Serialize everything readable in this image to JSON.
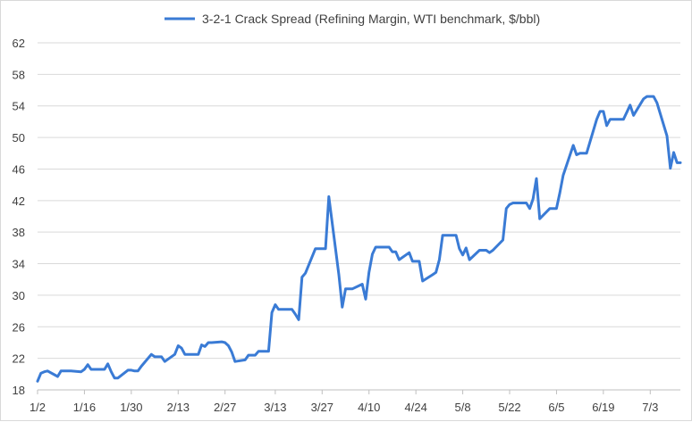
{
  "chart_data": {
    "type": "line",
    "title": "",
    "xlabel": "",
    "ylabel": "",
    "ylim": [
      18,
      62
    ],
    "yticks": [
      18,
      22,
      26,
      30,
      34,
      38,
      42,
      46,
      50,
      54,
      58,
      62
    ],
    "xlim": [
      "2024-01-02",
      "2024-07-12"
    ],
    "xticks": [
      "2024-01-02",
      "2024-01-16",
      "2024-01-30",
      "2024-02-13",
      "2024-02-27",
      "2024-03-13",
      "2024-03-27",
      "2024-04-10",
      "2024-04-24",
      "2024-05-08",
      "2024-05-22",
      "2024-06-05",
      "2024-06-19",
      "2024-07-03"
    ],
    "xtick_labels": [
      "1/2",
      "1/16",
      "1/30",
      "2/13",
      "2/27",
      "3/13",
      "3/27",
      "4/10",
      "4/24",
      "5/8",
      "5/22",
      "6/5",
      "6/19",
      "7/3"
    ],
    "grid": "horizontal",
    "legend": "top-center",
    "series": [
      {
        "name": "3-2-1 Crack Spread (Refining Margin, WTI benchmark, $/bbl)",
        "color": "#3a7bd5",
        "points": [
          [
            "2024-01-02",
            19.1
          ],
          [
            "2024-01-03",
            20.1
          ],
          [
            "2024-01-04",
            20.3
          ],
          [
            "2024-01-05",
            20.4
          ],
          [
            "2024-01-08",
            19.7
          ],
          [
            "2024-01-09",
            20.4
          ],
          [
            "2024-01-10",
            20.4
          ],
          [
            "2024-01-11",
            20.4
          ],
          [
            "2024-01-12",
            20.4
          ],
          [
            "2024-01-15",
            20.3
          ],
          [
            "2024-01-16",
            20.6
          ],
          [
            "2024-01-17",
            21.2
          ],
          [
            "2024-01-18",
            20.6
          ],
          [
            "2024-01-19",
            20.6
          ],
          [
            "2024-01-22",
            20.6
          ],
          [
            "2024-01-23",
            21.3
          ],
          [
            "2024-01-24",
            20.3
          ],
          [
            "2024-01-25",
            19.5
          ],
          [
            "2024-01-26",
            19.5
          ],
          [
            "2024-01-29",
            20.5
          ],
          [
            "2024-01-30",
            20.5
          ],
          [
            "2024-01-31",
            20.4
          ],
          [
            "2024-02-01",
            20.4
          ],
          [
            "2024-02-02",
            21.0
          ],
          [
            "2024-02-05",
            22.5
          ],
          [
            "2024-02-06",
            22.2
          ],
          [
            "2024-02-07",
            22.2
          ],
          [
            "2024-02-08",
            22.2
          ],
          [
            "2024-02-09",
            21.6
          ],
          [
            "2024-02-12",
            22.5
          ],
          [
            "2024-02-13",
            23.6
          ],
          [
            "2024-02-14",
            23.3
          ],
          [
            "2024-02-15",
            22.5
          ],
          [
            "2024-02-16",
            22.5
          ],
          [
            "2024-02-19",
            22.5
          ],
          [
            "2024-02-20",
            23.7
          ],
          [
            "2024-02-21",
            23.5
          ],
          [
            "2024-02-22",
            24.0
          ],
          [
            "2024-02-23",
            24.0
          ],
          [
            "2024-02-26",
            24.1
          ],
          [
            "2024-02-27",
            24.0
          ],
          [
            "2024-02-28",
            23.6
          ],
          [
            "2024-02-29",
            22.8
          ],
          [
            "2024-03-01",
            21.6
          ],
          [
            "2024-03-04",
            21.8
          ],
          [
            "2024-03-05",
            22.4
          ],
          [
            "2024-03-06",
            22.4
          ],
          [
            "2024-03-07",
            22.4
          ],
          [
            "2024-03-08",
            22.9
          ],
          [
            "2024-03-11",
            22.9
          ],
          [
            "2024-03-12",
            27.8
          ],
          [
            "2024-03-13",
            28.8
          ],
          [
            "2024-03-14",
            28.2
          ],
          [
            "2024-03-15",
            28.2
          ],
          [
            "2024-03-18",
            28.2
          ],
          [
            "2024-03-19",
            27.6
          ],
          [
            "2024-03-20",
            26.9
          ],
          [
            "2024-03-21",
            32.3
          ],
          [
            "2024-03-22",
            32.8
          ],
          [
            "2024-03-25",
            35.9
          ],
          [
            "2024-03-26",
            35.9
          ],
          [
            "2024-03-27",
            35.9
          ],
          [
            "2024-03-28",
            35.9
          ],
          [
            "2024-03-29",
            42.5
          ],
          [
            "2024-04-01",
            32.6
          ],
          [
            "2024-04-02",
            28.5
          ],
          [
            "2024-04-03",
            30.8
          ],
          [
            "2024-04-04",
            30.8
          ],
          [
            "2024-04-05",
            30.8
          ],
          [
            "2024-04-08",
            31.4
          ],
          [
            "2024-04-09",
            29.5
          ],
          [
            "2024-04-10",
            32.9
          ],
          [
            "2024-04-11",
            35.2
          ],
          [
            "2024-04-12",
            36.1
          ],
          [
            "2024-04-15",
            36.1
          ],
          [
            "2024-04-16",
            36.1
          ],
          [
            "2024-04-17",
            35.5
          ],
          [
            "2024-04-18",
            35.5
          ],
          [
            "2024-04-19",
            34.5
          ],
          [
            "2024-04-22",
            35.4
          ],
          [
            "2024-04-23",
            34.3
          ],
          [
            "2024-04-24",
            34.3
          ],
          [
            "2024-04-25",
            34.3
          ],
          [
            "2024-04-26",
            31.8
          ],
          [
            "2024-04-29",
            32.6
          ],
          [
            "2024-04-30",
            32.9
          ],
          [
            "2024-05-01",
            34.5
          ],
          [
            "2024-05-02",
            37.6
          ],
          [
            "2024-05-03",
            37.6
          ],
          [
            "2024-05-06",
            37.6
          ],
          [
            "2024-05-07",
            35.9
          ],
          [
            "2024-05-08",
            35.1
          ],
          [
            "2024-05-09",
            36.0
          ],
          [
            "2024-05-10",
            34.5
          ],
          [
            "2024-05-13",
            35.7
          ],
          [
            "2024-05-14",
            35.7
          ],
          [
            "2024-05-15",
            35.7
          ],
          [
            "2024-05-16",
            35.4
          ],
          [
            "2024-05-17",
            35.7
          ],
          [
            "2024-05-20",
            37.0
          ],
          [
            "2024-05-21",
            41.0
          ],
          [
            "2024-05-22",
            41.5
          ],
          [
            "2024-05-23",
            41.7
          ],
          [
            "2024-05-24",
            41.7
          ],
          [
            "2024-05-27",
            41.7
          ],
          [
            "2024-05-28",
            41.0
          ],
          [
            "2024-05-29",
            42.2
          ],
          [
            "2024-05-30",
            44.8
          ],
          [
            "2024-05-31",
            39.7
          ],
          [
            "2024-06-03",
            41.0
          ],
          [
            "2024-06-04",
            41.0
          ],
          [
            "2024-06-05",
            41.0
          ],
          [
            "2024-06-06",
            43.0
          ],
          [
            "2024-06-07",
            45.2
          ],
          [
            "2024-06-10",
            49.0
          ],
          [
            "2024-06-11",
            47.8
          ],
          [
            "2024-06-12",
            48.0
          ],
          [
            "2024-06-13",
            48.0
          ],
          [
            "2024-06-14",
            48.0
          ],
          [
            "2024-06-17",
            52.3
          ],
          [
            "2024-06-18",
            53.3
          ],
          [
            "2024-06-19",
            53.3
          ],
          [
            "2024-06-20",
            51.5
          ],
          [
            "2024-06-21",
            52.3
          ],
          [
            "2024-06-24",
            52.3
          ],
          [
            "2024-06-25",
            52.3
          ],
          [
            "2024-06-26",
            53.2
          ],
          [
            "2024-06-27",
            54.1
          ],
          [
            "2024-06-28",
            52.8
          ],
          [
            "2024-07-01",
            54.9
          ],
          [
            "2024-07-02",
            55.2
          ],
          [
            "2024-07-03",
            55.2
          ],
          [
            "2024-07-04",
            55.2
          ],
          [
            "2024-07-05",
            54.4
          ],
          [
            "2024-07-08",
            50.2
          ],
          [
            "2024-07-09",
            46.1
          ],
          [
            "2024-07-10",
            48.1
          ],
          [
            "2024-07-11",
            46.8
          ],
          [
            "2024-07-12",
            46.8
          ]
        ]
      }
    ]
  }
}
